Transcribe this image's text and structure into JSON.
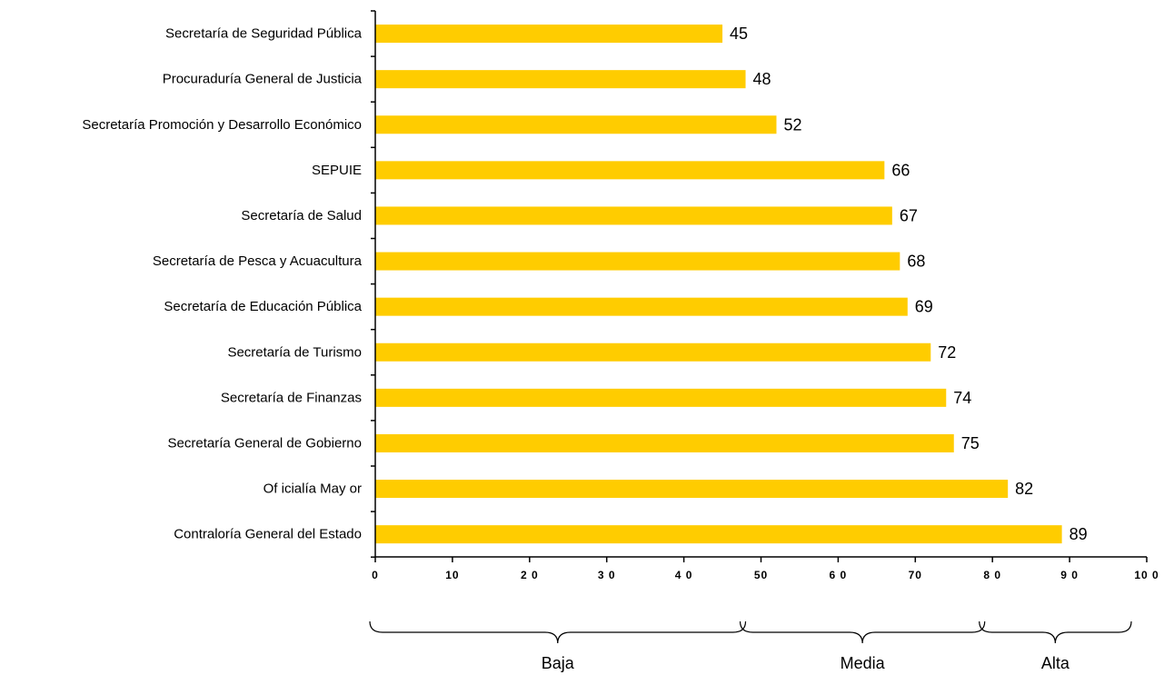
{
  "chart_data": {
    "type": "bar",
    "orientation": "horizontal",
    "categories": [
      "Secretaría de Seguridad Pública",
      "Procuraduría General de Justicia",
      "Secretaría Promoción y  Desarrollo Económico",
      "SEPUIE",
      "Secretaría de Salud",
      "Secretaría de Pesca y  Acuacultura",
      "Secretaría de Educación Pública",
      "Secretaría de Turismo",
      "Secretaría de Finanzas",
      "Secretaría General de Gobierno",
      "Of icialía May or",
      "Contraloría General del Estado"
    ],
    "values": [
      45,
      48,
      52,
      66,
      67,
      68,
      69,
      72,
      74,
      75,
      82,
      89
    ],
    "value_labels": [
      "45",
      "48",
      "52",
      "66",
      "67",
      "68",
      "69",
      "72",
      "74",
      "75",
      "82",
      "89"
    ],
    "xlim": [
      0,
      100
    ],
    "x_ticks": [
      0,
      10,
      20,
      30,
      40,
      50,
      60,
      70,
      80,
      90,
      100
    ],
    "x_tick_labels": [
      "0",
      "10",
      "2 0",
      "3 0",
      "4 0",
      "50",
      "6 0",
      "70",
      "8 0",
      "9 0",
      "10 0"
    ],
    "grid": false,
    "bar_color": "#FFCC00",
    "ranges": [
      {
        "label": "Baja",
        "from": 0,
        "to": 48
      },
      {
        "label": "Media",
        "from": 48,
        "to": 79
      },
      {
        "label": "Alta",
        "from": 79,
        "to": 98
      }
    ]
  }
}
